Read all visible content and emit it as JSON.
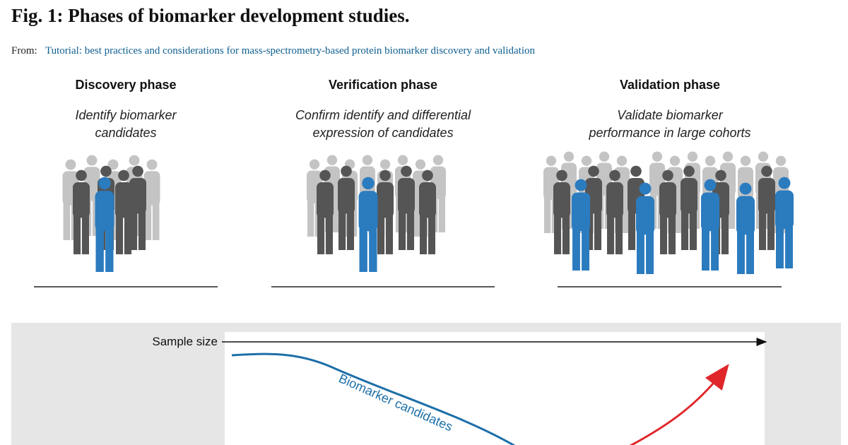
{
  "header": {
    "title": "Fig. 1: Phases of biomarker development studies.",
    "from_label": "From:",
    "link": "Tutorial: best practices and considerations for mass-spectrometry-based protein biomarker discovery and validation"
  },
  "phases": [
    {
      "title": "Discovery phase",
      "lines": [
        "Identify biomarker",
        "candidates"
      ]
    },
    {
      "title": "Verification phase",
      "lines": [
        "Confirm identify and differential",
        "expression of candidates"
      ]
    },
    {
      "title": "Validation phase",
      "lines": [
        "Validate biomarker",
        "performance in large cohorts"
      ]
    }
  ],
  "bottom": {
    "axis_label": "Sample size",
    "curve_label": "Biomarker candidates"
  }
}
